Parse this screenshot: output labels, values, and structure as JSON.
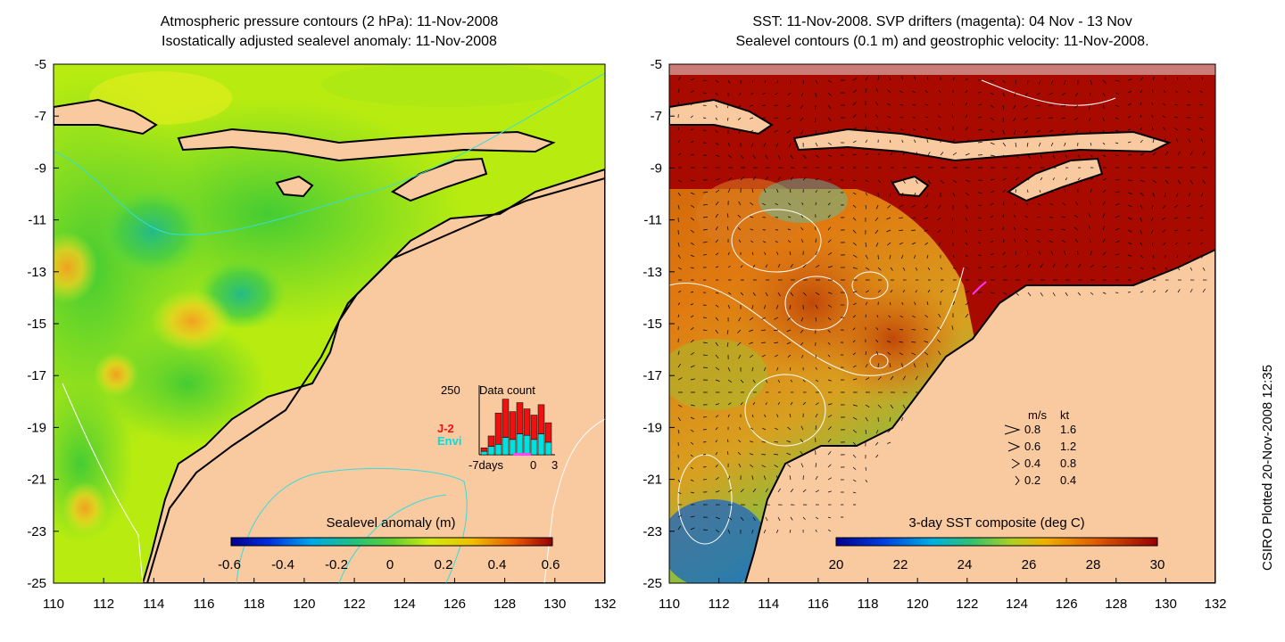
{
  "left_panel": {
    "title_line1": "Atmospheric pressure contours (2 hPa): 11-Nov-2008",
    "title_line2": "Isostatically adjusted sealevel anomaly: 11-Nov-2008",
    "colorbar_title": "Sealevel anomaly (m)",
    "colorbar_ticks": [
      "-0.6",
      "-0.4",
      "-0.2",
      "0",
      "0.2",
      "0.4",
      "0.6"
    ],
    "inset": {
      "max_label": "250",
      "title": "Data count",
      "series_j2": "J-2",
      "series_envi": "Envi",
      "x_labels": [
        "-7days",
        "0",
        "3"
      ],
      "j2_color": "#ee1111",
      "envi_color": "#00e0e0",
      "bars": [
        {
          "envi": 0.05,
          "j2": 0.05
        },
        {
          "envi": 0.12,
          "j2": 0.15
        },
        {
          "envi": 0.15,
          "j2": 0.45
        },
        {
          "envi": 0.25,
          "j2": 0.55
        },
        {
          "envi": 0.22,
          "j2": 0.4
        },
        {
          "envi": 0.3,
          "j2": 0.45
        },
        {
          "envi": 0.28,
          "j2": 0.38
        },
        {
          "envi": 0.22,
          "j2": 0.35
        },
        {
          "envi": 0.3,
          "j2": 0.42
        },
        {
          "envi": 0.18,
          "j2": 0.28
        }
      ]
    }
  },
  "right_panel": {
    "title_line1": "SST: 11-Nov-2008. SVP drifters (magenta): 04 Nov - 13 Nov",
    "title_line2": "Sealevel contours (0.1 m) and geostrophic velocity: 11-Nov-2008.",
    "colorbar_title": "3-day SST composite (deg C)",
    "colorbar_ticks": [
      "20",
      "22",
      "24",
      "26",
      "28",
      "30"
    ],
    "legend": {
      "header_ms": "m/s",
      "header_kt": "kt",
      "rows": [
        {
          "ms": "0.8",
          "kt": "1.6"
        },
        {
          "ms": "0.6",
          "kt": "1.2"
        },
        {
          "ms": "0.4",
          "kt": "0.8"
        },
        {
          "ms": "0.2",
          "kt": "0.4"
        }
      ]
    }
  },
  "axes": {
    "x_ticks": [
      "110",
      "112",
      "114",
      "116",
      "118",
      "120",
      "122",
      "124",
      "126",
      "128",
      "130",
      "132"
    ],
    "y_ticks": [
      "-5",
      "-7",
      "-9",
      "-11",
      "-13",
      "-15",
      "-17",
      "-19",
      "-21",
      "-23",
      "-25"
    ]
  },
  "side_credit": "CSIRO Plotted 20-Nov-2008 12:35",
  "colors": {
    "land": "#f9c9a0",
    "coast": "#000000",
    "sst_warm": "#a80a00",
    "sst_mid": "#e08a10",
    "sla_base": "#b8ec10"
  }
}
